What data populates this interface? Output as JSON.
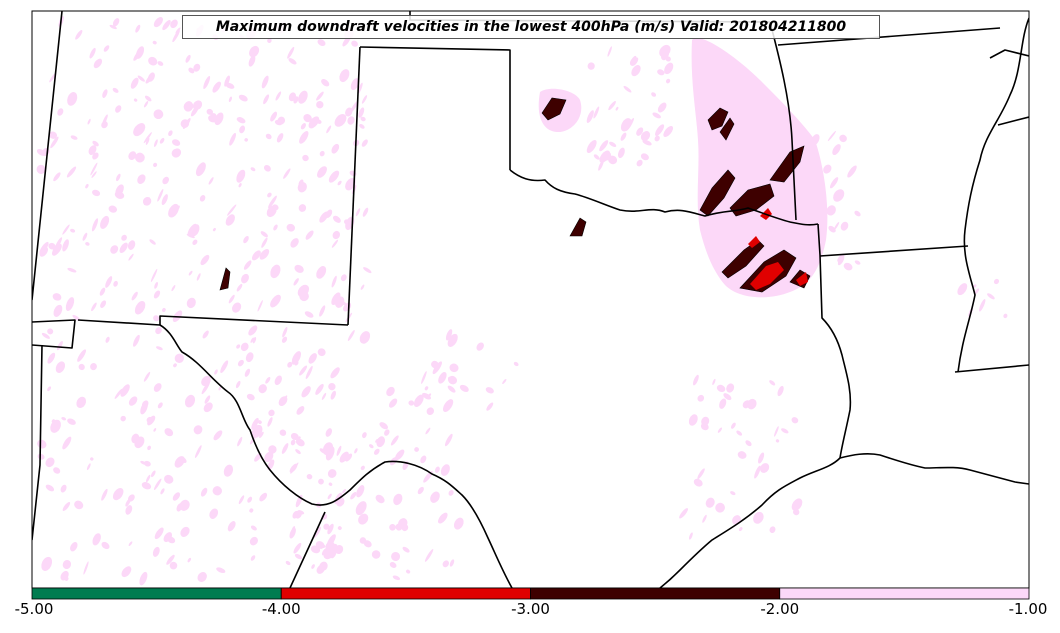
{
  "title": "Maximum downdraft velocities in the lowest 400hPa (m/s) Valid: 201804211800",
  "colorbar": {
    "ticks": [
      "-5.00",
      "-4.00",
      "-3.00",
      "-2.00",
      "-1.00"
    ],
    "bins": [
      {
        "from": -5,
        "to": -4,
        "color": "#007c50"
      },
      {
        "from": -4,
        "to": -3,
        "color": "#e00000"
      },
      {
        "from": -3,
        "to": -2,
        "color": "#3e0000"
      },
      {
        "from": -2,
        "to": -1,
        "color": "#fcd8f8"
      }
    ]
  },
  "colors": {
    "weak": "#fcd8f8",
    "moderate": "#3e0000",
    "strong": "#e00000",
    "boundary": "#000000"
  }
}
